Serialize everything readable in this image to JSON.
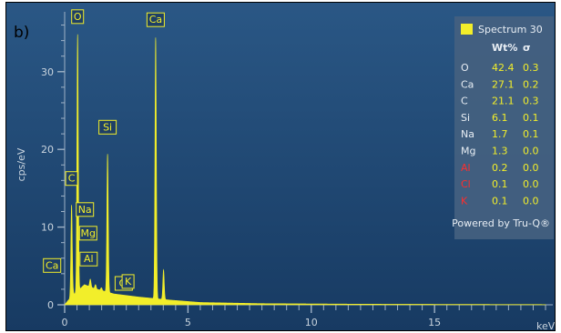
{
  "figure_label": "b)",
  "colors": {
    "background": "#1f4a78",
    "spectrum": "#f2ee2a",
    "panel": "#43607f",
    "text": "#c9d4de",
    "low_value_element": "#ff2d2d"
  },
  "chart_data": {
    "type": "line",
    "title": "",
    "xlabel": "keV",
    "ylabel": "cps/eV",
    "xlim": [
      0,
      19.5
    ],
    "ylim": [
      0,
      37
    ],
    "x_ticks": [
      0,
      5,
      10,
      15
    ],
    "x_tick_labels": [
      "0",
      "5",
      "10",
      "15"
    ],
    "y_ticks": [
      0,
      10,
      20,
      30
    ],
    "y_tick_labels": [
      "0",
      "10",
      "20",
      "30"
    ],
    "series": [
      {
        "peaks": [
          {
            "x": 0.28,
            "y": 12.8
          },
          {
            "x": 0.34,
            "y": 1.6
          },
          {
            "x": 0.525,
            "y": 34.8
          },
          {
            "x": 1.04,
            "y": 3.3
          },
          {
            "x": 1.25,
            "y": 2.6
          },
          {
            "x": 1.49,
            "y": 2.2
          },
          {
            "x": 1.74,
            "y": 19.4
          },
          {
            "x": 2.62,
            "y": 0.7
          },
          {
            "x": 3.31,
            "y": 0.6
          },
          {
            "x": 3.69,
            "y": 34.4
          },
          {
            "x": 4.01,
            "y": 4.5
          }
        ],
        "background": [
          {
            "x": 0.0,
            "y": 0.0
          },
          {
            "x": 0.15,
            "y": 0.6
          },
          {
            "x": 0.8,
            "y": 2.6
          },
          {
            "x": 1.2,
            "y": 2.1
          },
          {
            "x": 2.0,
            "y": 1.4
          },
          {
            "x": 3.0,
            "y": 1.0
          },
          {
            "x": 4.3,
            "y": 0.6
          },
          {
            "x": 5.5,
            "y": 0.3
          },
          {
            "x": 8.0,
            "y": 0.15
          },
          {
            "x": 12.0,
            "y": 0.08
          },
          {
            "x": 19.5,
            "y": 0.03
          }
        ]
      }
    ],
    "peak_labels": [
      {
        "label": "O",
        "x": 0.525,
        "y": 34.8
      },
      {
        "label": "Ca",
        "x": 3.69,
        "y": 34.4
      },
      {
        "label": "C",
        "x": 0.28,
        "y": 12.8
      },
      {
        "label": "Si",
        "x": 1.74,
        "y": 19.4
      },
      {
        "label": "Na",
        "x": 1.04,
        "y": 3.3
      },
      {
        "label": "Mg",
        "x": 1.25,
        "y": 2.6
      },
      {
        "label": "Al",
        "x": 1.49,
        "y": 2.2
      },
      {
        "label": "Ca",
        "x": 0.34,
        "y": 1.6
      },
      {
        "label": "Cl",
        "x": 2.62,
        "y": 0.7
      },
      {
        "label": "K",
        "x": 3.31,
        "y": 0.6
      }
    ],
    "results_table": {
      "spectrum_name": "Spectrum 30",
      "headers": [
        "",
        "Wt%",
        "σ"
      ],
      "rows": [
        {
          "element": "O",
          "wt": "42.4",
          "sigma": "0.3",
          "highlight": false
        },
        {
          "element": "Ca",
          "wt": "27.1",
          "sigma": "0.2",
          "highlight": false
        },
        {
          "element": "C",
          "wt": "21.1",
          "sigma": "0.3",
          "highlight": false
        },
        {
          "element": "Si",
          "wt": "6.1",
          "sigma": "0.1",
          "highlight": false
        },
        {
          "element": "Na",
          "wt": "1.7",
          "sigma": "0.1",
          "highlight": false
        },
        {
          "element": "Mg",
          "wt": "1.3",
          "sigma": "0.0",
          "highlight": false
        },
        {
          "element": "Al",
          "wt": "0.2",
          "sigma": "0.0",
          "highlight": true
        },
        {
          "element": "Cl",
          "wt": "0.1",
          "sigma": "0.0",
          "highlight": true
        },
        {
          "element": "K",
          "wt": "0.1",
          "sigma": "0.0",
          "highlight": true
        }
      ],
      "footer": "Powered by Tru-Q®"
    }
  }
}
